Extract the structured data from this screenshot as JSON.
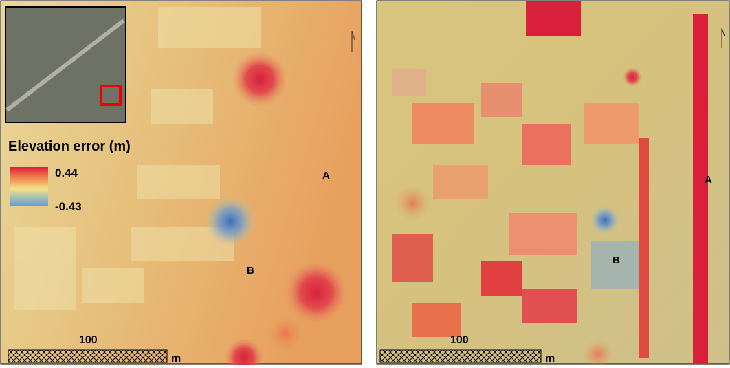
{
  "panels": [
    {
      "legend": {
        "title": "Elevation error (m)",
        "max_label": "0.44",
        "min_label": "-0.43"
      },
      "labels": {
        "a": "A",
        "b": "B"
      },
      "scale_bar": {
        "distance": "100",
        "unit": "m"
      }
    },
    {
      "labels": {
        "a": "A",
        "b": "B"
      },
      "scale_bar": {
        "distance": "100",
        "unit": "m"
      }
    }
  ]
}
